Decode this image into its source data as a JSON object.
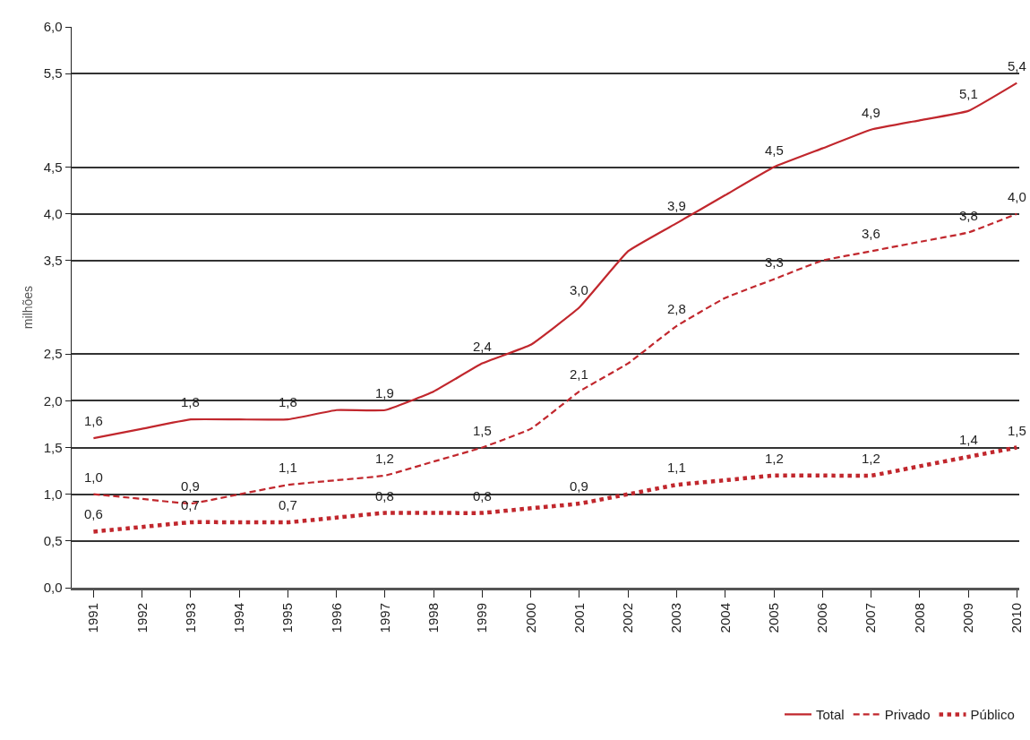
{
  "chart_data": {
    "type": "line",
    "ylabel": "milhões",
    "categories": [
      "1991",
      "1992",
      "1993",
      "1994",
      "1995",
      "1996",
      "1997",
      "1998",
      "1999",
      "2000",
      "2001",
      "2002",
      "2003",
      "2004",
      "2005",
      "2006",
      "2007",
      "2008",
      "2009",
      "2010"
    ],
    "ylim": [
      0,
      6
    ],
    "yticks": [
      {
        "value": 0,
        "label": "0,0"
      },
      {
        "value": 0.5,
        "label": "0,5"
      },
      {
        "value": 1,
        "label": "1,0"
      },
      {
        "value": 1.5,
        "label": "1,5"
      },
      {
        "value": 2,
        "label": "2,0"
      },
      {
        "value": 2.5,
        "label": "2,5"
      },
      {
        "value": 3.5,
        "label": "3,5"
      },
      {
        "value": 4,
        "label": "4,0"
      },
      {
        "value": 4.5,
        "label": "4,5"
      },
      {
        "value": 5.5,
        "label": "5,5"
      },
      {
        "value": 6,
        "label": "6,0"
      }
    ],
    "series": [
      {
        "name": "Total",
        "color": "#c1272d",
        "line_style": "solid",
        "values": [
          1.6,
          1.7,
          1.8,
          1.8,
          1.8,
          1.9,
          1.9,
          2.1,
          2.4,
          2.6,
          3.0,
          3.6,
          3.9,
          4.2,
          4.5,
          4.7,
          4.9,
          5.0,
          5.1,
          5.4
        ],
        "value_labels": [
          "1,6",
          null,
          "1,8",
          null,
          "1,8",
          null,
          "1,9",
          null,
          "2,4",
          null,
          "3,0",
          null,
          "3,9",
          null,
          "4,5",
          null,
          "4,9",
          null,
          "5,1",
          "5,4"
        ]
      },
      {
        "name": "Privado",
        "color": "#c1272d",
        "line_style": "dashed",
        "values": [
          1.0,
          0.95,
          0.9,
          1.0,
          1.1,
          1.15,
          1.2,
          1.35,
          1.5,
          1.7,
          2.1,
          2.4,
          2.8,
          3.1,
          3.3,
          3.5,
          3.6,
          3.7,
          3.8,
          4.0
        ],
        "value_labels": [
          "1,0",
          null,
          "0,9",
          null,
          "1,1",
          null,
          "1,2",
          null,
          "1,5",
          null,
          "2,1",
          null,
          "2,8",
          null,
          "3,3",
          null,
          "3,6",
          null,
          "3,8",
          "4,0"
        ]
      },
      {
        "name": "Público",
        "color": "#c1272d",
        "line_style": "dotted",
        "values": [
          0.6,
          0.65,
          0.7,
          0.7,
          0.7,
          0.75,
          0.8,
          0.8,
          0.8,
          0.85,
          0.9,
          1.0,
          1.1,
          1.15,
          1.2,
          1.2,
          1.2,
          1.3,
          1.4,
          1.5
        ],
        "value_labels": [
          "0,6",
          null,
          "0,7",
          null,
          "0,7",
          null,
          "0,8",
          null,
          "0,8",
          null,
          "0,9",
          null,
          "1,1",
          null,
          "1,2",
          null,
          "1,2",
          null,
          "1,4",
          "1,5"
        ]
      }
    ],
    "grid": "y",
    "legend": "bottom right",
    "marker": "none"
  }
}
